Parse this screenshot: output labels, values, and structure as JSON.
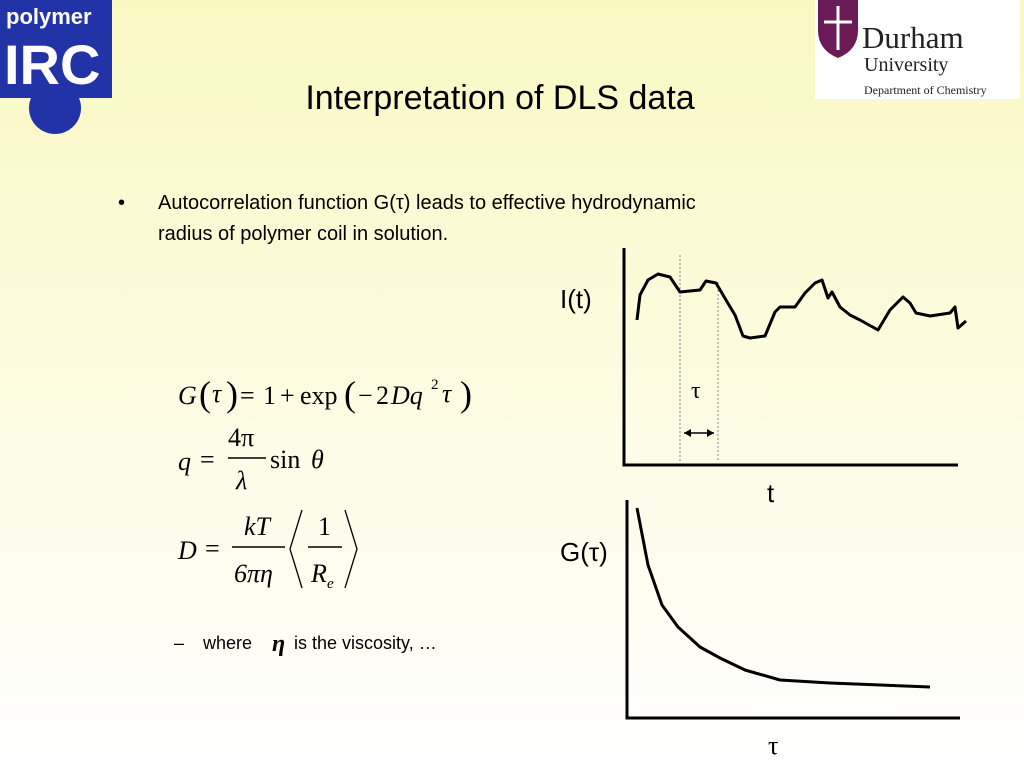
{
  "logos": {
    "left": {
      "line1": "polymer",
      "line2": "IRC"
    },
    "right": {
      "name": "Durham",
      "subtitle": "University",
      "department": "Department of Chemistry"
    }
  },
  "header": {
    "title": "Interpretation of DLS data"
  },
  "bullet": {
    "marker": "•",
    "lines": [
      "Autocorrelation function G(τ) leads to effective hydrodynamic",
      "radius of polymer coil in solution."
    ]
  },
  "equations": [
    [
      "G",
      "(",
      "τ",
      ")",
      "=",
      "1",
      "+",
      "exp",
      "(",
      "−",
      "2",
      "Dq",
      "2",
      "τ",
      ")"
    ],
    [
      "q",
      "=",
      "4π",
      "λ",
      "sin",
      "θ"
    ],
    [
      "D",
      "=",
      "kT",
      "6πη",
      "1",
      "R",
      "e"
    ]
  ],
  "sub_bullet": {
    "marker": "–",
    "before": "where",
    "symbol": "η",
    "after": "is the viscosity, …"
  },
  "diagram": {
    "intensity_label": "I(t)",
    "delay_label": "τ",
    "time_label": "t",
    "correlation_label": "G(τ)",
    "correlation_x_label": "τ"
  }
}
